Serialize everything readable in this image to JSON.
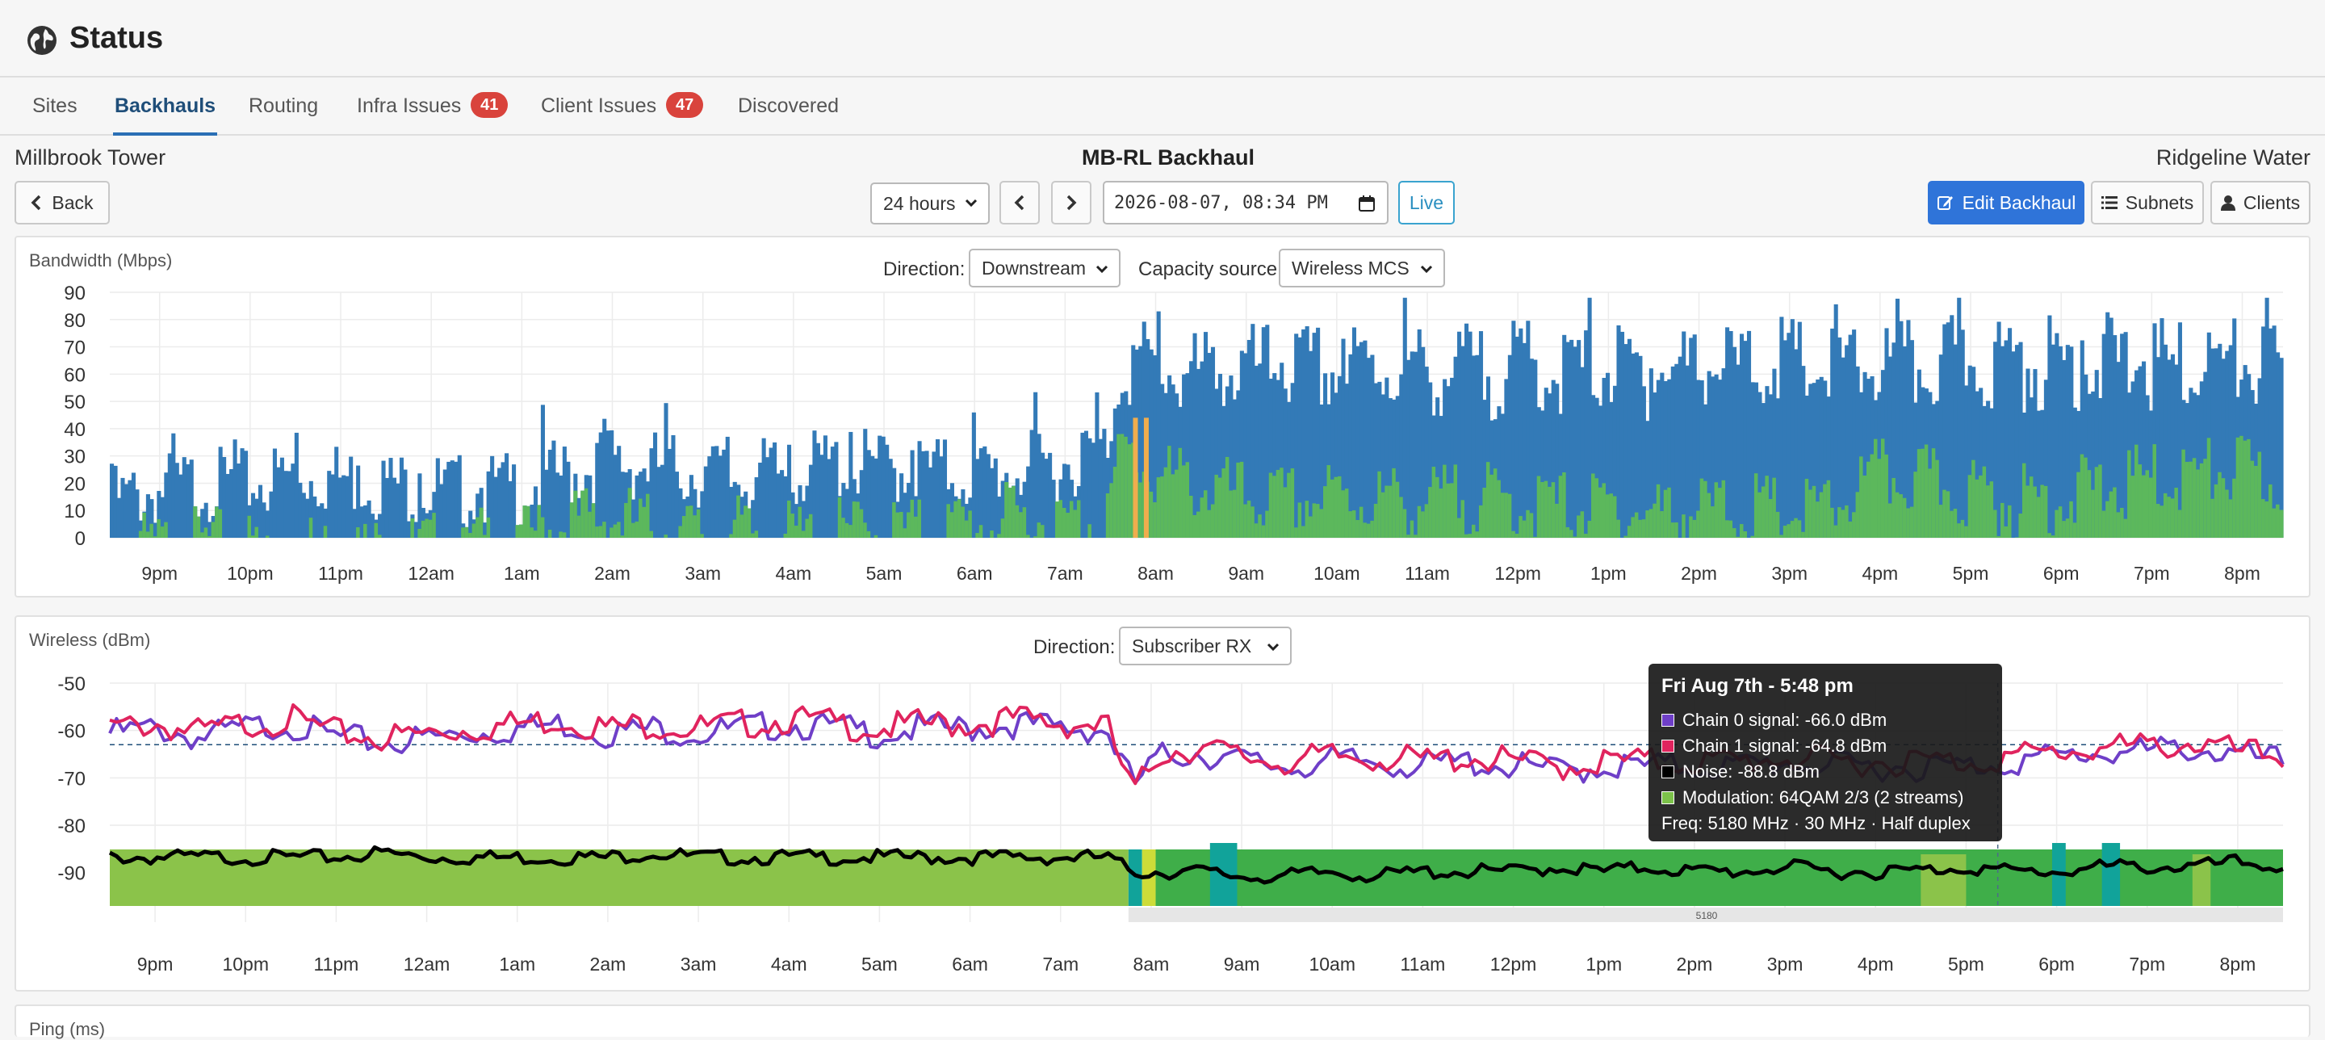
{
  "header": {
    "title": "Status"
  },
  "tabs": [
    {
      "label": "Sites"
    },
    {
      "label": "Backhauls"
    },
    {
      "label": "Routing"
    },
    {
      "label": "Infra Issues",
      "badge": "41"
    },
    {
      "label": "Client Issues",
      "badge": "47"
    },
    {
      "label": "Discovered"
    }
  ],
  "link": {
    "site_a": "Millbrook Tower",
    "name": "MB-RL Backhaul",
    "site_b": "Ridgeline Water"
  },
  "toolbar": {
    "back_label": "Back",
    "range_value": "24 hours",
    "datetime_value": "2026-08-07, 08:34 PM",
    "live_label": "Live",
    "edit_label": "Edit Backhaul",
    "subnets_label": "Subnets",
    "clients_label": "Clients"
  },
  "bandwidth": {
    "title": "Bandwidth (Mbps)",
    "direction_label": "Direction:",
    "direction_value": "Downstream",
    "capacity_label": "Capacity source:",
    "capacity_value": "Wireless MCS"
  },
  "wireless": {
    "title": "Wireless (dBm)",
    "direction_label": "Direction:",
    "direction_value": "Subscriber RX",
    "freq_bar_label": "5180"
  },
  "ping": {
    "title": "Ping (ms)"
  },
  "tooltip": {
    "title": "Fri Aug 7th - 5:48 pm",
    "rows": [
      {
        "text": "Chain 0 signal: -66.0 dBm",
        "color": "#6f3fc8"
      },
      {
        "text": "Chain 1 signal: -64.8 dBm",
        "color": "#e0245e"
      },
      {
        "text": "Noise: -88.8 dBm",
        "color": "#000000"
      },
      {
        "text": "Modulation: 64QAM 2/3 (2 streams)",
        "color": "#7cc24a"
      }
    ],
    "footer": "Freq: 5180 MHz · 30 MHz · Half duplex"
  },
  "chart_data": [
    {
      "type": "bar",
      "title": "Bandwidth (Mbps)",
      "ylim": [
        0,
        90
      ],
      "yticks": [
        0,
        10,
        20,
        30,
        40,
        50,
        60,
        70,
        80,
        90
      ],
      "xticks": [
        "9pm",
        "10pm",
        "11pm",
        "12am",
        "1am",
        "2am",
        "3am",
        "4am",
        "5am",
        "6am",
        "7am",
        "8am",
        "9am",
        "10am",
        "11am",
        "12pm",
        "1pm",
        "2pm",
        "3pm",
        "4pm",
        "5pm",
        "6pm",
        "7pm",
        "8pm"
      ],
      "grid": true,
      "colors": {
        "capacity": "#337ab7",
        "throughput": "#5cb85c",
        "marker": "#f0ad4e"
      },
      "series": [
        {
          "hours": [
            0.0,
            0.5,
            1.0,
            1.5,
            2.0,
            2.5,
            3.0,
            3.5,
            4.0,
            4.5,
            5.0,
            5.5,
            6.0,
            6.5,
            7.0,
            7.5,
            8.0,
            8.5,
            9.0,
            9.5,
            10.0,
            10.5,
            11.0,
            11.2,
            11.5,
            12.0,
            12.5,
            13.0,
            13.5,
            14.0,
            14.5,
            15.0,
            15.5,
            16.0,
            16.5,
            17.0,
            17.5,
            18.0,
            18.5,
            19.0,
            19.5,
            20.0,
            20.5,
            21.0,
            21.5,
            22.0,
            22.5,
            23.0,
            23.5,
            24.0
          ],
          "values": [
            20,
            24,
            27,
            26,
            30,
            29,
            27,
            25,
            24,
            25,
            30,
            35,
            33,
            31,
            29,
            31,
            34,
            33,
            32,
            30,
            32,
            34,
            40,
            74,
            72,
            68,
            70,
            71,
            70,
            72,
            70,
            68,
            71,
            70,
            72,
            69,
            72,
            71,
            73,
            70,
            72,
            71,
            74,
            72,
            73,
            74,
            72,
            71,
            73,
            70
          ]
        },
        {
          "hours": [
            0.0,
            0.5,
            1.0,
            1.5,
            2.0,
            2.5,
            3.0,
            3.5,
            4.0,
            4.5,
            5.0,
            5.5,
            6.0,
            6.5,
            7.0,
            7.5,
            8.0,
            8.5,
            9.0,
            9.5,
            10.0,
            10.5,
            11.0,
            11.2,
            11.5,
            12.0,
            12.5,
            13.0,
            13.5,
            14.0,
            14.5,
            15.0,
            15.5,
            16.0,
            16.5,
            17.0,
            17.5,
            18.0,
            18.5,
            19.0,
            19.5,
            20.0,
            20.5,
            21.0,
            21.5,
            22.0,
            22.5,
            23.0,
            23.5,
            24.0
          ],
          "values": [
            4,
            3,
            5,
            4,
            3,
            3,
            2,
            3,
            4,
            8,
            12,
            15,
            10,
            8,
            9,
            7,
            8,
            10,
            9,
            12,
            14,
            12,
            16,
            40,
            30,
            26,
            22,
            20,
            22,
            21,
            20,
            22,
            20,
            19,
            18,
            16,
            17,
            18,
            16,
            17,
            30,
            28,
            24,
            20,
            22,
            25,
            28,
            30,
            32,
            26
          ]
        }
      ]
    },
    {
      "type": "line",
      "title": "Wireless (dBm)",
      "ylim": [
        -95,
        -50
      ],
      "yticks": [
        -50,
        -60,
        -70,
        -80,
        -90
      ],
      "xticks": [
        "9pm",
        "10pm",
        "11pm",
        "12am",
        "1am",
        "2am",
        "3am",
        "4am",
        "5am",
        "6am",
        "7am",
        "8am",
        "9am",
        "10am",
        "11am",
        "12pm",
        "1pm",
        "2pm",
        "3pm",
        "4pm",
        "5pm",
        "6pm",
        "7pm",
        "8pm"
      ],
      "grid": true,
      "reference_line": -63,
      "series": [
        {
          "name": "Chain 0 signal",
          "color": "#6f3fc8",
          "hours": [
            0.0,
            0.5,
            1.0,
            1.5,
            2.0,
            2.5,
            3.0,
            3.5,
            4.0,
            4.5,
            5.0,
            5.5,
            6.0,
            6.5,
            7.0,
            7.5,
            8.0,
            8.5,
            9.0,
            9.5,
            10.0,
            10.5,
            11.0,
            11.3,
            11.6,
            12.0,
            12.5,
            13.0,
            13.5,
            14.0,
            14.5,
            15.0,
            15.5,
            16.0,
            16.5,
            17.0,
            17.5,
            18.0,
            18.5,
            19.0,
            19.5,
            20.0,
            20.5,
            21.0,
            21.5,
            22.0,
            22.5,
            23.0,
            23.5,
            24.0
          ],
          "values": [
            -59,
            -58,
            -60,
            -58,
            -57,
            -60,
            -61,
            -60,
            -59,
            -58,
            -57,
            -59,
            -58,
            -59,
            -58,
            -57,
            -58,
            -59,
            -58,
            -58,
            -57,
            -58,
            -58,
            -70,
            -64,
            -63,
            -65,
            -66,
            -65,
            -65,
            -66,
            -65,
            -66,
            -67,
            -66,
            -66,
            -66,
            -66,
            -65,
            -66,
            -66,
            -66,
            -66,
            -65,
            -64,
            -63,
            -63,
            -62,
            -64,
            -65
          ]
        },
        {
          "name": "Chain 1 signal",
          "color": "#e0245e",
          "hours": [
            0.0,
            0.5,
            1.0,
            1.5,
            2.0,
            2.5,
            3.0,
            3.5,
            4.0,
            4.5,
            5.0,
            5.5,
            6.0,
            6.5,
            7.0,
            7.5,
            8.0,
            8.5,
            9.0,
            9.5,
            10.0,
            10.5,
            11.0,
            11.3,
            11.6,
            12.0,
            12.5,
            13.0,
            13.5,
            14.0,
            14.5,
            15.0,
            15.5,
            16.0,
            16.5,
            17.0,
            17.5,
            18.0,
            18.5,
            19.0,
            19.5,
            20.0,
            20.5,
            21.0,
            21.5,
            22.0,
            22.5,
            23.0,
            23.5,
            24.0
          ],
          "values": [
            -58,
            -57,
            -59,
            -57,
            -56,
            -59,
            -60,
            -59,
            -58,
            -57,
            -56,
            -58,
            -57,
            -58,
            -57,
            -56,
            -57,
            -58,
            -57,
            -57,
            -56,
            -57,
            -57,
            -72,
            -63,
            -62,
            -64,
            -65,
            -64,
            -64,
            -65,
            -64,
            -65,
            -66,
            -65,
            -65,
            -65,
            -65,
            -64,
            -65,
            -65,
            -64.8,
            -65,
            -64,
            -63,
            -62,
            -62,
            -61,
            -63,
            -64
          ]
        },
        {
          "name": "Noise",
          "color": "#000000",
          "hours": [
            0.0,
            0.5,
            1.0,
            1.5,
            2.0,
            2.5,
            3.0,
            3.5,
            4.0,
            4.5,
            5.0,
            5.5,
            6.0,
            6.5,
            7.0,
            7.5,
            8.0,
            8.5,
            9.0,
            9.5,
            10.0,
            10.5,
            11.0,
            11.3,
            11.6,
            12.0,
            12.5,
            13.0,
            13.5,
            14.0,
            14.5,
            15.0,
            15.5,
            16.0,
            16.5,
            17.0,
            17.5,
            18.0,
            18.5,
            19.0,
            19.5,
            20.0,
            20.5,
            21.0,
            21.5,
            22.0,
            22.5,
            23.0,
            23.5,
            24.0
          ],
          "values": [
            -86,
            -86,
            -86,
            -86,
            -86,
            -86,
            -85,
            -86,
            -86,
            -86,
            -86,
            -86,
            -85,
            -86,
            -86,
            -86,
            -86,
            -86,
            -86,
            -86,
            -86,
            -86,
            -86,
            -89,
            -89,
            -89,
            -90,
            -90,
            -89,
            -90,
            -89,
            -89,
            -89,
            -88,
            -89,
            -88,
            -89,
            -89,
            -88,
            -89,
            -89,
            -88.8,
            -88,
            -89,
            -89,
            -88,
            -88,
            -88,
            -87,
            -88
          ]
        }
      ],
      "modulation_bands": [
        {
          "from": 0.0,
          "to": 11.25,
          "color": "#8bc34a"
        },
        {
          "from": 11.25,
          "to": 11.4,
          "color": "#11a39a"
        },
        {
          "from": 11.4,
          "to": 11.55,
          "color": "#cddc39"
        },
        {
          "from": 11.55,
          "to": 24.0,
          "color": "#3fae49"
        }
      ]
    }
  ]
}
